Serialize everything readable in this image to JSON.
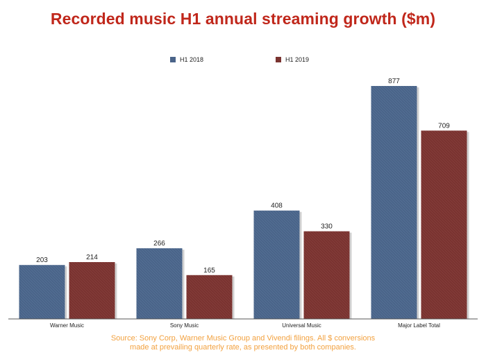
{
  "title": "Recorded music H1 annual streaming growth ($m)",
  "source_note": {
    "line1": "Source: Sony Corp, Warner Music Group and Vivendi filings. All $ conversions",
    "line2": "made at prevailing quarterly rate, as presented by both companies."
  },
  "colors": {
    "title": "#c0271b",
    "source": "#f2a13f",
    "series": [
      "#4a6489",
      "#7a3330"
    ]
  },
  "chart_data": {
    "type": "bar",
    "title": "Recorded music H1 annual streaming growth ($m)",
    "categories": [
      "Warner Music",
      "Sony Music",
      "Universal Music",
      "Major Label Total"
    ],
    "series": [
      {
        "name": "H1 2018",
        "values": [
          203,
          266,
          408,
          877
        ]
      },
      {
        "name": "H1 2019",
        "values": [
          214,
          165,
          330,
          709
        ]
      }
    ],
    "xlabel": "",
    "ylabel": "",
    "ylim": [
      0,
      877
    ],
    "grid": false,
    "legend": "top-center",
    "data_labels": true
  }
}
